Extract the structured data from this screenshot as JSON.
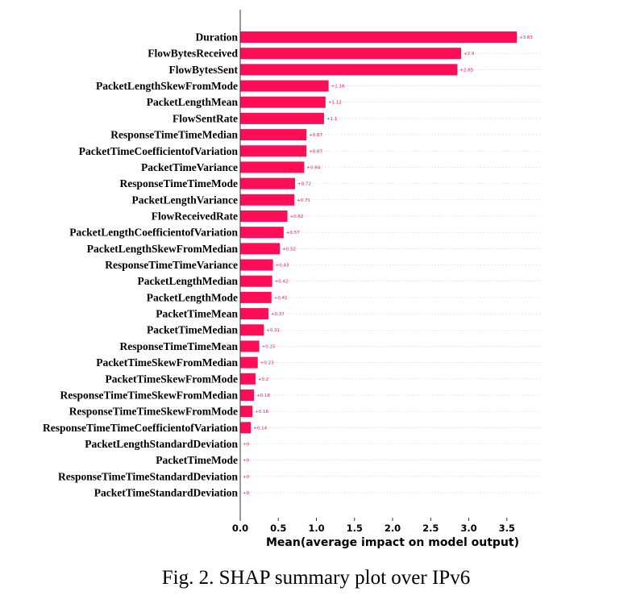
{
  "chart_data": {
    "type": "bar",
    "orientation": "horizontal",
    "categories": [
      "Duration",
      "FlowBytesReceived",
      "FlowBytesSent",
      "PacketLengthSkewFromMode",
      "PacketLengthMean",
      "FlowSentRate",
      "ResponseTimeTimeMedian",
      "PacketTimeCoefficientofVariation",
      "PacketTimeVariance",
      "ResponseTimeTimeMode",
      "PacketLengthVariance",
      "FlowReceivedRate",
      "PacketLengthCoefficientofVariation",
      "PacketLengthSkewFromMedian",
      "ResponseTimeTimeVariance",
      "PacketLengthMedian",
      "PacketLengthMode",
      "PacketTimeMean",
      "PacketTimeMedian",
      "ResponseTimeTimeMean",
      "PacketTimeSkewFromMedian",
      "PacketTimeSkewFromMode",
      "ResponseTimeTimeSkewFromMedian",
      "ResponseTimeTimeSkewFromMode",
      "ResponseTimeTimeCoefficientofVariation",
      "PacketLengthStandardDeviation",
      "PacketTimeMode",
      "ResponseTimeTimeStandardDeviation",
      "PacketTimeStandardDeviation"
    ],
    "values": [
      3.63,
      2.9,
      2.85,
      1.16,
      1.12,
      1.1,
      0.87,
      0.87,
      0.84,
      0.72,
      0.71,
      0.62,
      0.57,
      0.52,
      0.43,
      0.42,
      0.41,
      0.37,
      0.31,
      0.25,
      0.23,
      0.2,
      0.18,
      0.16,
      0.14,
      0,
      0,
      0,
      0
    ],
    "value_labels": [
      "+3.63",
      "+2.9",
      "+2.85",
      "+1.16",
      "+1.12",
      "+1.1",
      "+0.87",
      "+0.87",
      "+0.84",
      "+0.72",
      "+0.71",
      "+0.62",
      "+0.57",
      "+0.52",
      "+0.43",
      "+0.42",
      "+0.41",
      "+0.37",
      "+0.31",
      "+0.25",
      "+0.23",
      "+0.2",
      "+0.18",
      "+0.16",
      "+0.14",
      "+0",
      "+0",
      "+0",
      "+0"
    ],
    "xlabel": "Mean(average impact on model output)",
    "xlim": [
      0,
      3.9
    ],
    "xticks": [
      "0.0",
      "0.5",
      "1.0",
      "1.5",
      "2.0",
      "2.5",
      "3.0",
      "3.5"
    ],
    "bar_color": "#ff0d57",
    "grid": "horizontal-dashed"
  },
  "caption": "Fig. 2.   SHAP summary plot over IPv6"
}
